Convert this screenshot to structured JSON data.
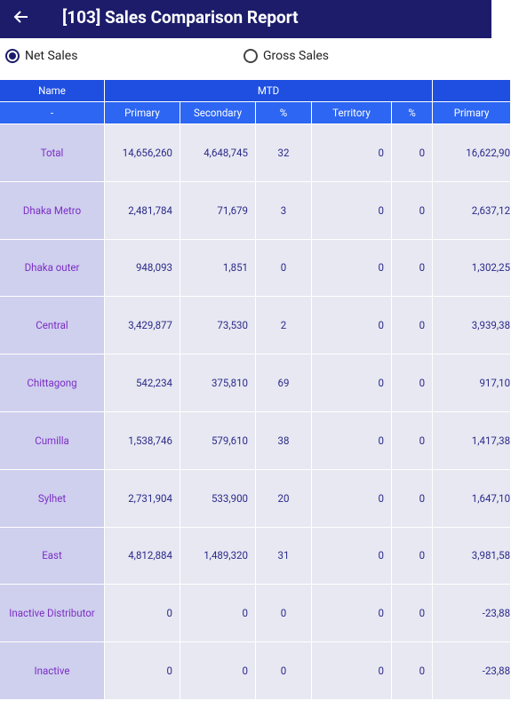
{
  "header": {
    "title": "[103] Sales Comparison Report"
  },
  "options": [
    {
      "label": "Net Sales",
      "selected": true
    },
    {
      "label": "Gross Sales",
      "selected": false
    }
  ],
  "table": {
    "groups": [
      {
        "label": "Name",
        "span": 1
      },
      {
        "label": "MTD",
        "span": 5
      }
    ],
    "columns": [
      "-",
      "Primary",
      "Secondary",
      "%",
      "Territory",
      "%",
      "Primary"
    ],
    "rows": [
      [
        "Total",
        "14,656,260",
        "4,648,745",
        "32",
        "0",
        "0",
        "16,622,90"
      ],
      [
        "Dhaka Metro",
        "2,481,784",
        "71,679",
        "3",
        "0",
        "0",
        "2,637,12"
      ],
      [
        "Dhaka outer",
        "948,093",
        "1,851",
        "0",
        "0",
        "0",
        "1,302,25"
      ],
      [
        "Central",
        "3,429,877",
        "73,530",
        "2",
        "0",
        "0",
        "3,939,38"
      ],
      [
        "Chittagong",
        "542,234",
        "375,810",
        "69",
        "0",
        "0",
        "917,10"
      ],
      [
        "Cumilla",
        "1,538,746",
        "579,610",
        "38",
        "0",
        "0",
        "1,417,38"
      ],
      [
        "Sylhet",
        "2,731,904",
        "533,900",
        "20",
        "0",
        "0",
        "1,647,10"
      ],
      [
        "East",
        "4,812,884",
        "1,489,320",
        "31",
        "0",
        "0",
        "3,981,58"
      ],
      [
        "Inactive Distributor",
        "0",
        "0",
        "0",
        "0",
        "0",
        "-23,88"
      ],
      [
        "Inactive",
        "0",
        "0",
        "0",
        "0",
        "0",
        "-23,88"
      ]
    ]
  }
}
